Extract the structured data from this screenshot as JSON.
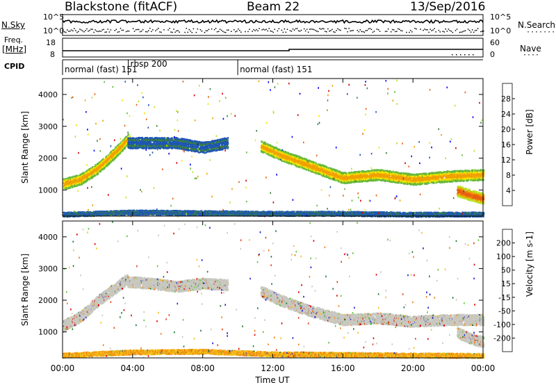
{
  "header": {
    "title": "Blackstone (fitACF)",
    "beam": "Beam 22",
    "date": "13/Sep/2016"
  },
  "noise_panel": {
    "left_label": "N.Sky",
    "right_label": "N.Search",
    "right_dots": "·······",
    "ticks_left": [
      "10^5",
      "10^0"
    ],
    "ticks_right": [
      "10^5",
      "10^0"
    ]
  },
  "freq_panel": {
    "left_label_1": "Freq.",
    "left_label_2": "[MHz]",
    "right_label": "Nave",
    "right_dots": "····",
    "ticks_left": [
      "18",
      "8"
    ],
    "ticks_right": [
      "60",
      "0"
    ]
  },
  "cpid_panel": {
    "label": "CPID",
    "modes": [
      {
        "name": "normal (fast) 151",
        "start_hour": 0
      },
      {
        "name": "rbsp 200",
        "start_hour": 3.75
      },
      {
        "name": "normal (fast) 151",
        "start_hour": 10
      }
    ]
  },
  "chart_data": [
    {
      "type": "heatmap",
      "parameter": "Power",
      "colorbar_label": "Power [dB]",
      "colorbar_ticks": [
        "28",
        "24",
        "20",
        "16",
        "12",
        "8",
        "4"
      ],
      "ylabel": "Slant Range [km]",
      "y_ticks": [
        "4000",
        "3000",
        "2000",
        "1000"
      ],
      "ylim": [
        180,
        4500
      ],
      "xlim_hours": [
        0,
        24
      ],
      "colors": [
        "#0000ff",
        "#1e56b4",
        "#3a8040",
        "#66b83c",
        "#b8e020",
        "#f5e400",
        "#f0a000",
        "#e86010",
        "#d20000"
      ],
      "echo_bands": [
        {
          "x": [
            0,
            1,
            2,
            3,
            3.7
          ],
          "y": [
            1200,
            1350,
            1700,
            2200,
            2600
          ],
          "color_index": 6
        },
        {
          "x": [
            3.7,
            5,
            6.5,
            8,
            9.4
          ],
          "y": [
            2500,
            2500,
            2500,
            2350,
            2500
          ],
          "color_index": 1
        },
        {
          "x": [
            11.3,
            12.5,
            14,
            16,
            18,
            20,
            22,
            24
          ],
          "y": [
            2400,
            2100,
            1800,
            1400,
            1500,
            1350,
            1450,
            1500
          ],
          "color_index": 6
        },
        {
          "x": [
            22.5,
            23.3,
            24
          ],
          "y": [
            1000,
            850,
            750
          ],
          "color_index": 7
        },
        {
          "x": [
            0,
            4,
            8,
            12,
            16,
            20,
            24
          ],
          "y": [
            250,
            320,
            300,
            280,
            280,
            250,
            260
          ],
          "color_index": 1
        }
      ]
    },
    {
      "type": "heatmap",
      "parameter": "Velocity",
      "colorbar_label": "Velocity [m s-1]",
      "colorbar_ticks": [
        "200",
        "100",
        "50",
        "15",
        "-15",
        "-50",
        "-100",
        "-200"
      ],
      "ylabel": "Slant Range [km]",
      "y_ticks": [
        "4000",
        "3000",
        "2000",
        "1000"
      ],
      "ylim": [
        180,
        4500
      ],
      "xlim_hours": [
        0,
        24
      ],
      "colors": [
        "#1a1acc",
        "#1d7a36",
        "#5fc53a",
        "#c8c8c0",
        "#c8c8c0",
        "#f5c018",
        "#f08010",
        "#e04010",
        "#e00000"
      ],
      "echo_bands": [
        {
          "x": [
            0,
            1,
            2,
            3,
            3.7
          ],
          "y": [
            1200,
            1500,
            2000,
            2400,
            2700
          ],
          "color_index": 3
        },
        {
          "x": [
            3.7,
            5,
            6.5,
            8,
            9.4
          ],
          "y": [
            2600,
            2550,
            2450,
            2550,
            2500
          ],
          "color_index": 3
        },
        {
          "x": [
            11.3,
            12.5,
            14,
            16,
            18,
            20,
            22,
            24
          ],
          "y": [
            2300,
            2000,
            1700,
            1400,
            1450,
            1350,
            1400,
            1400
          ],
          "color_index": 3
        },
        {
          "x": [
            22.5,
            23.3,
            24
          ],
          "y": [
            1000,
            800,
            700
          ],
          "color_index": 3
        },
        {
          "x": [
            0,
            4,
            8,
            12,
            16,
            20,
            24
          ],
          "y": [
            280,
            380,
            400,
            320,
            300,
            280,
            270
          ],
          "color_index": 5
        }
      ]
    }
  ],
  "time_axis": {
    "ticks": [
      "00:00",
      "04:00",
      "08:00",
      "12:00",
      "16:00",
      "20:00",
      "00:00"
    ],
    "label": "Time UT"
  }
}
